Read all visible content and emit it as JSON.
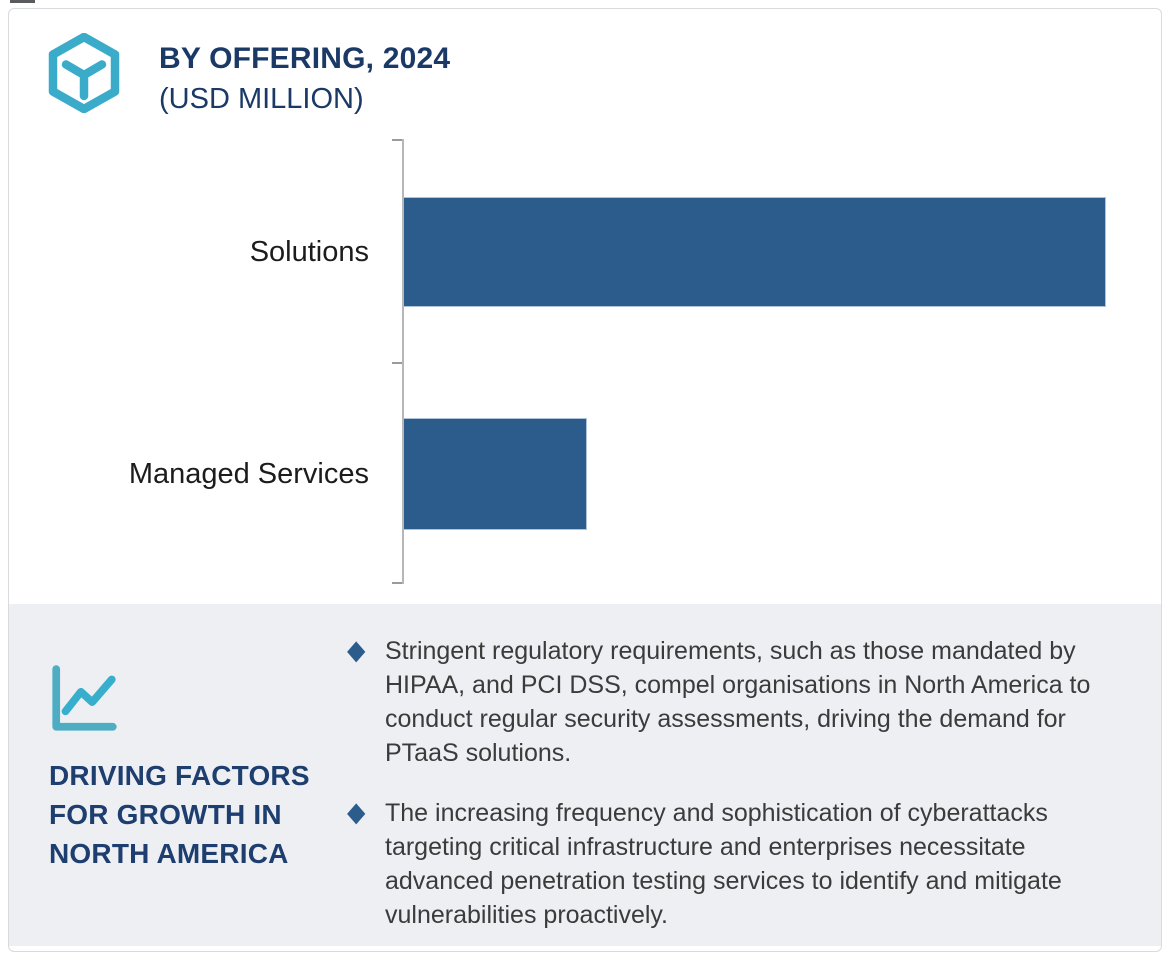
{
  "header": {
    "title": "BY OFFERING, 2024",
    "subtitle": "(USD MILLION)"
  },
  "chart_data": {
    "type": "bar",
    "orientation": "horizontal",
    "title": "BY OFFERING, 2024",
    "unit": "USD Million",
    "categories": [
      "Solutions",
      "Managed Services"
    ],
    "relative_values": [
      1.0,
      0.26
    ],
    "value_labels_shown": false,
    "value_axis": "unlabeled",
    "grid": "off",
    "legend": "none",
    "bar_color": "#2b5c8c"
  },
  "panel": {
    "heading_lines": [
      "DRIVING FACTORS",
      "FOR GROWTH IN",
      "NORTH AMERICA"
    ],
    "bullet_marker": "◆",
    "bullets": [
      "Stringent regulatory requirements, such as those mandated by HIPAA, and PCI DSS, compel organisations in North America to conduct regular security assessments, driving the demand for PTaaS solutions.",
      "The increasing frequency and sophistication of cyberattacks targeting critical infrastructure and enterprises necessitate advanced penetration testing services to identify and mitigate vulnerabilities proactively."
    ]
  },
  "icons": {
    "header_icon": "hexagon-box-icon",
    "panel_icon": "line-chart-icon"
  },
  "colors": {
    "navy": "#1a3966",
    "teal": "#3aabc9",
    "bar_blue": "#2b5c8c",
    "panel_bg": "#edeff3",
    "axis_gray": "#b7b7ba",
    "body_text": "#3b3b3b",
    "card_border": "#d9dade"
  }
}
